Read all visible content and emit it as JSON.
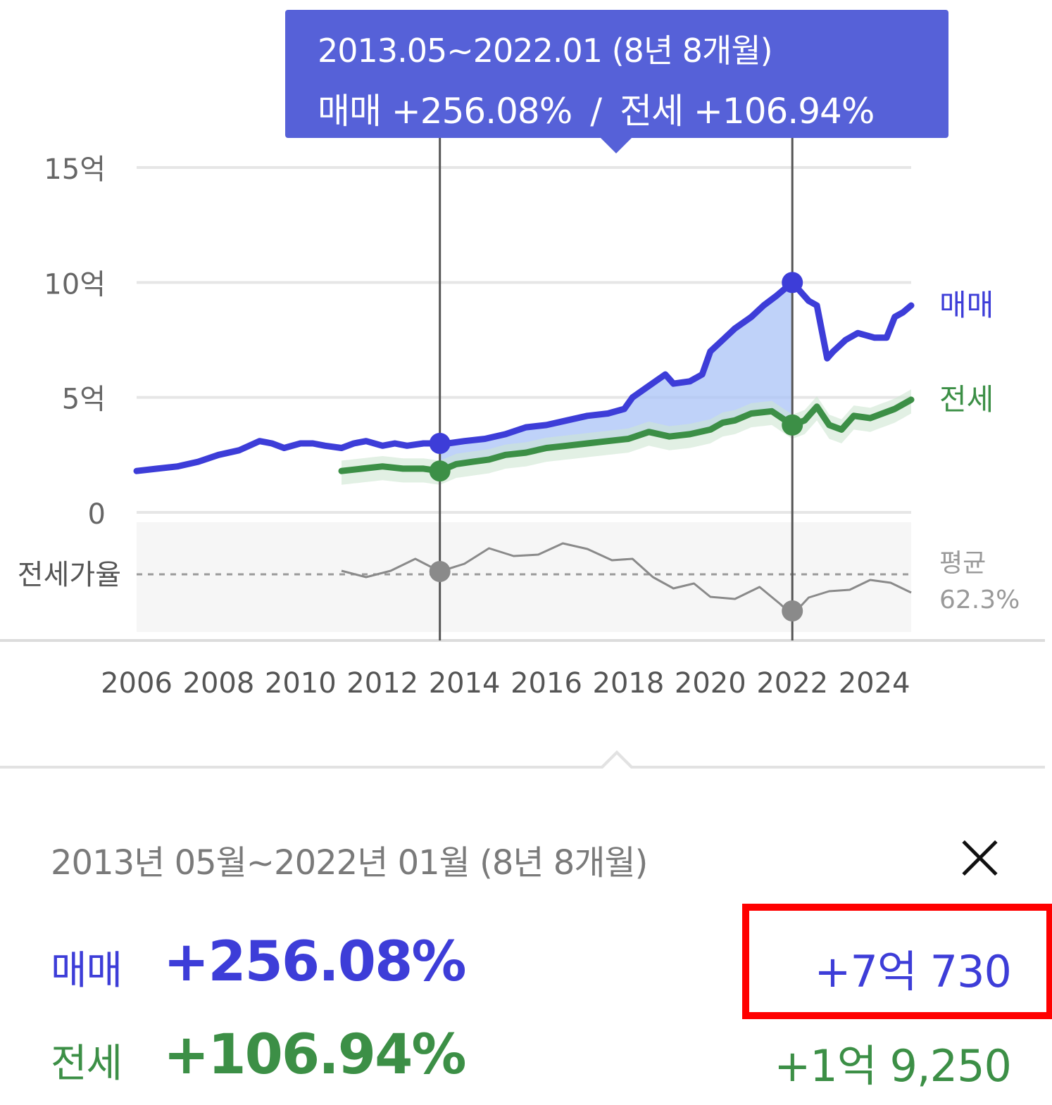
{
  "tooltip": {
    "period": "2013.05~2022.01 (8년 8개월)",
    "sale_text": "매매 +256.08%",
    "separator": "/",
    "jeonse_text": "전세 +106.94%"
  },
  "colors": {
    "sale": "#3d3dd8",
    "jeonse": "#3c8f46",
    "ratio": "#8a8a8a",
    "tooltip_bg": "#5661d8",
    "highlight": "#ff0000"
  },
  "chart_data": {
    "type": "line",
    "ylim": [
      0,
      15
    ],
    "y_ticks": [
      {
        "value": 15,
        "label": "15억"
      },
      {
        "value": 10,
        "label": "10억"
      },
      {
        "value": 5,
        "label": "5억"
      },
      {
        "value": 0,
        "label": "0"
      }
    ],
    "x_range": [
      2006,
      2024.9
    ],
    "x_ticks": [
      "2006",
      "2008",
      "2010",
      "2012",
      "2014",
      "2016",
      "2018",
      "2020",
      "2022",
      "2024"
    ],
    "series": [
      {
        "name": "매매",
        "key": "sale",
        "x": [
          2006.0,
          2006.5,
          2007.0,
          2007.5,
          2008.0,
          2008.5,
          2009.0,
          2009.3,
          2009.6,
          2010.0,
          2010.3,
          2010.6,
          2011.0,
          2011.3,
          2011.6,
          2012.0,
          2012.3,
          2012.6,
          2013.0,
          2013.4,
          2013.6,
          2014.0,
          2014.5,
          2015.0,
          2015.5,
          2016.0,
          2016.5,
          2017.0,
          2017.5,
          2017.9,
          2018.1,
          2018.5,
          2018.9,
          2019.1,
          2019.5,
          2019.8,
          2020.0,
          2020.3,
          2020.6,
          2021.0,
          2021.3,
          2021.6,
          2022.0,
          2022.4,
          2022.6,
          2022.85,
          2023.0,
          2023.3,
          2023.6,
          2024.0,
          2024.3,
          2024.5,
          2024.7,
          2024.9
        ],
        "values": [
          1.8,
          1.9,
          2.0,
          2.2,
          2.5,
          2.7,
          3.1,
          3.0,
          2.8,
          3.0,
          3.0,
          2.9,
          2.8,
          3.0,
          3.1,
          2.9,
          3.0,
          2.9,
          3.0,
          3.0,
          3.0,
          3.1,
          3.2,
          3.4,
          3.7,
          3.8,
          4.0,
          4.2,
          4.3,
          4.5,
          5.0,
          5.5,
          6.0,
          5.6,
          5.7,
          6.0,
          7.0,
          7.5,
          8.0,
          8.5,
          9.0,
          9.4,
          10.0,
          9.2,
          9.0,
          6.7,
          7.0,
          7.5,
          7.8,
          7.6,
          7.6,
          8.5,
          8.7,
          9.0
        ]
      },
      {
        "name": "전세",
        "key": "jeonse",
        "x": [
          2011.0,
          2011.5,
          2012.0,
          2012.5,
          2013.0,
          2013.4,
          2013.8,
          2014.2,
          2014.6,
          2015.0,
          2015.5,
          2016.0,
          2016.5,
          2017.0,
          2017.5,
          2018.0,
          2018.5,
          2019.0,
          2019.5,
          2020.0,
          2020.3,
          2020.6,
          2021.0,
          2021.5,
          2022.0,
          2022.3,
          2022.6,
          2022.9,
          2023.2,
          2023.5,
          2023.9,
          2024.2,
          2024.5,
          2024.9
        ],
        "values": [
          1.8,
          1.9,
          2.0,
          1.9,
          1.9,
          1.8,
          2.1,
          2.2,
          2.3,
          2.5,
          2.6,
          2.8,
          2.9,
          3.0,
          3.1,
          3.2,
          3.5,
          3.3,
          3.4,
          3.6,
          3.9,
          4.0,
          4.3,
          4.4,
          3.8,
          4.0,
          4.6,
          3.8,
          3.6,
          4.2,
          4.1,
          4.3,
          4.5,
          4.9
        ]
      }
    ],
    "ratio": {
      "label": "전세가율",
      "average_label": "평균",
      "average_value": "62.3%"
    },
    "selection": {
      "start": {
        "x": 2013.4,
        "sale": 3.0,
        "jeonse": 1.8
      },
      "end": {
        "x": 2022.0,
        "sale": 10.0,
        "jeonse": 3.8
      }
    }
  },
  "detail": {
    "period": "2013년 05월~2022년 01월 (8년 8개월)",
    "sale_label": "매매",
    "sale_pct": "+256.08%",
    "sale_amount": "+7억 730",
    "jeonse_label": "전세",
    "jeonse_pct": "+106.94%",
    "jeonse_amount": "+1억 9,250"
  }
}
